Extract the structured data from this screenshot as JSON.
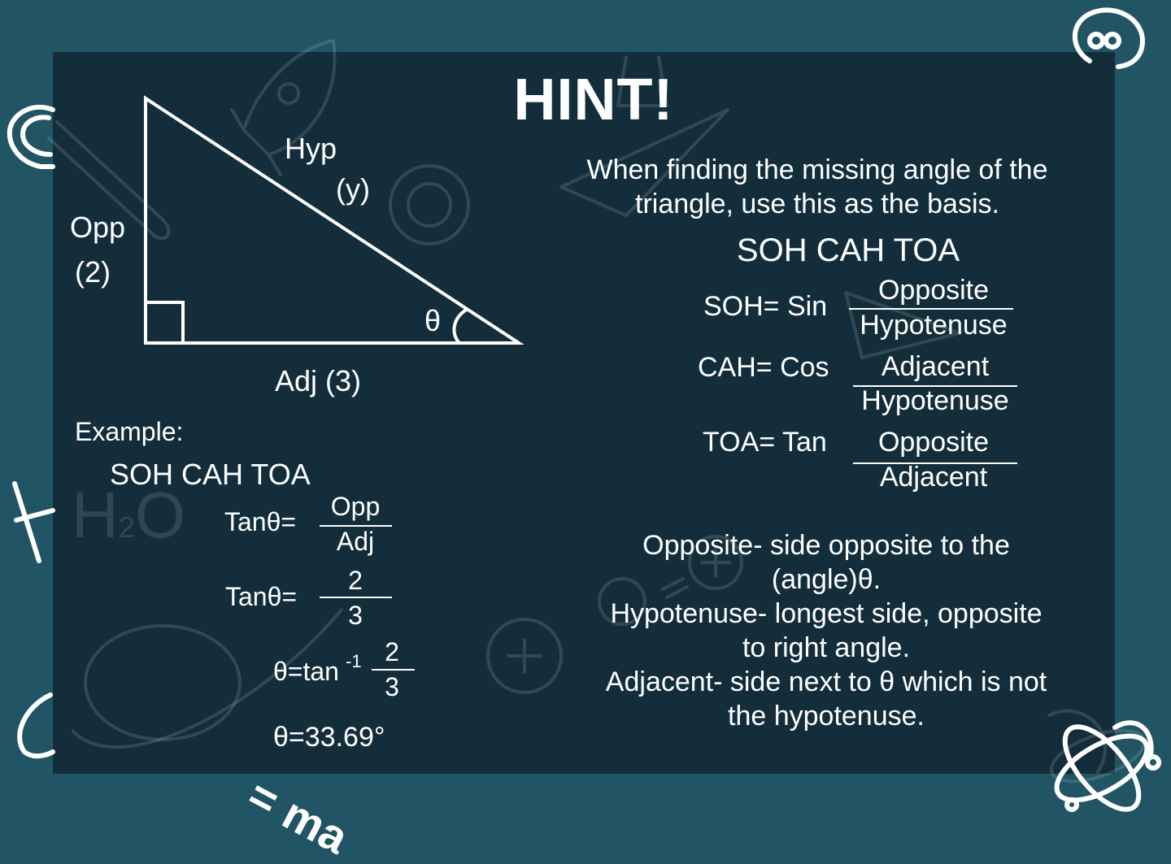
{
  "title": "HINT!",
  "triangle": {
    "hyp": "Hyp",
    "hyp_value": "(y)",
    "opp": "Opp",
    "opp_value": "(2)",
    "adj": "Adj (3)",
    "angle": "θ"
  },
  "example": {
    "label": "Example:",
    "mnemonic": "SOH CAH TOA",
    "step1": {
      "lhs": "Tanθ=",
      "num": "Opp",
      "den": "Adj"
    },
    "step2": {
      "lhs": "Tanθ=",
      "num": "2",
      "den": "3"
    },
    "step3": {
      "lhs": "θ=tan",
      "sup": "-1",
      "num": "2",
      "den": "3"
    },
    "result": "θ=33.69°"
  },
  "intro": {
    "line1": "When finding the missing angle of the",
    "line2": "triangle, use this as the basis."
  },
  "mnemonic": "SOH CAH TOA",
  "ratios": [
    {
      "label": "SOH= Sin",
      "num": "Opposite",
      "den": "Hypotenuse"
    },
    {
      "label": "CAH= Cos",
      "num": "Adjacent",
      "den": "Hypotenuse"
    },
    {
      "label": "TOA= Tan",
      "num": "Opposite",
      "den": "Adjacent"
    }
  ],
  "definitions": {
    "line1": "Opposite- side opposite to the",
    "line2": "(angle)θ.",
    "line3": "Hypotenuse- longest side, opposite",
    "line4": "to right angle.",
    "line5": "Adjacent- side next to θ which is not",
    "line6": "the hypotenuse."
  },
  "decor": {
    "formula": "= ma",
    "water_h": "H",
    "water_2": "2",
    "water_o": "O"
  }
}
